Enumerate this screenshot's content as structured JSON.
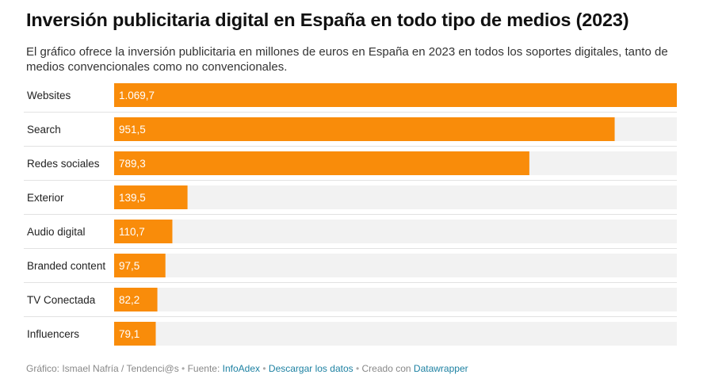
{
  "title": "Inversión publicitaria digital en España en todo tipo de medios (2023)",
  "subtitle": "El gráfico ofrece la inversión publicitaria en millones de euros en España en 2023 en todos los soportes digitales, tanto de medios convencionales como no convencionales.",
  "colors": {
    "bar": "#f98c0a",
    "track": "#f2f2f2",
    "label": "#222222",
    "value": "#ffffff",
    "divider": "#e2e2e2"
  },
  "chart_data": {
    "type": "bar",
    "orientation": "horizontal",
    "categories": [
      "Websites",
      "Search",
      "Redes sociales",
      "Exterior",
      "Audio digital",
      "Branded content",
      "TV Conectada",
      "Influencers"
    ],
    "values": [
      1069.7,
      951.5,
      789.3,
      139.5,
      110.7,
      97.5,
      82.2,
      79.1
    ],
    "value_labels": [
      "1.069,7",
      "951,5",
      "789,3",
      "139,5",
      "110,7",
      "97,5",
      "82,2",
      "79,1"
    ],
    "xlim": [
      0,
      1069.7
    ]
  },
  "footer": {
    "credit": "Gráfico: Ismael Nafría / Tendenci@s",
    "source_label": "Fuente:",
    "source_link": "InfoAdex",
    "download_link": "Descargar los datos",
    "created_label": "Creado con",
    "created_link": "Datawrapper",
    "separator": "•"
  }
}
